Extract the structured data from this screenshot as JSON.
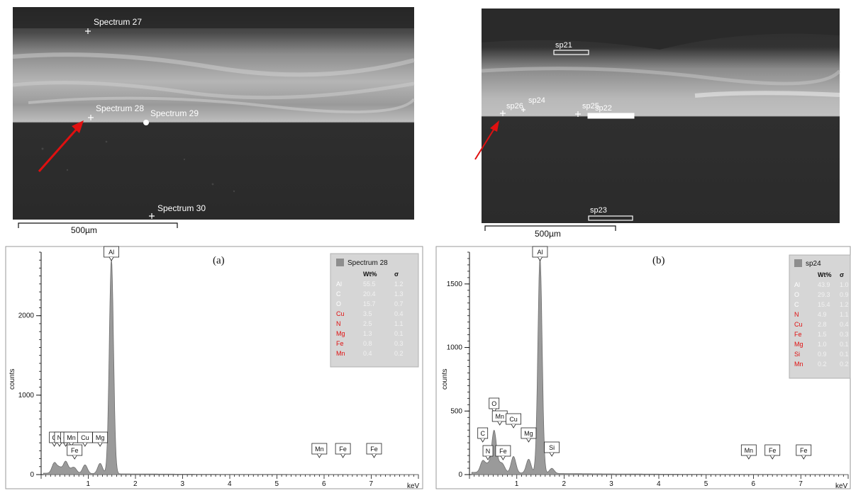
{
  "sem": [
    {
      "labels": [
        "Spectrum 27",
        "Spectrum 28",
        "Spectrum 29",
        "Spectrum 30"
      ],
      "scale_bar": "500µm"
    },
    {
      "labels": [
        "sp21",
        "sp26",
        "sp24",
        "sp25",
        "sp22",
        "sp23"
      ],
      "scale_bar": "500µm"
    }
  ],
  "colors": {
    "spectrum_fill": "#9a9a9a",
    "legend_bg": "#d6d6d6",
    "arrow": "#e01010",
    "element_red": "#e01010",
    "element_white": "#ffffff"
  },
  "chart_data": [
    {
      "type": "area",
      "panel_label": "(a)",
      "xlabel": "keV",
      "ylabel": "counts",
      "xlim": [
        0,
        8
      ],
      "ylim": [
        0,
        2800
      ],
      "x_ticks": [
        1,
        2,
        3,
        4,
        5,
        6,
        7
      ],
      "y_ticks": [
        0,
        1000,
        2000
      ],
      "legend": {
        "title": "Spectrum 28",
        "header": [
          "Wt%",
          "σ"
        ],
        "rows": [
          {
            "el": "Al",
            "wt": "55.5",
            "sigma": "1.2",
            "color": "white"
          },
          {
            "el": "C",
            "wt": "20.4",
            "sigma": "1.3",
            "color": "white"
          },
          {
            "el": "O",
            "wt": "15.7",
            "sigma": "0.7",
            "color": "white"
          },
          {
            "el": "Cu",
            "wt": "3.5",
            "sigma": "0.4",
            "color": "red"
          },
          {
            "el": "N",
            "wt": "2.5",
            "sigma": "1.1",
            "color": "red"
          },
          {
            "el": "Mg",
            "wt": "1.3",
            "sigma": "0.1",
            "color": "red"
          },
          {
            "el": "Fe",
            "wt": "0.8",
            "sigma": "0.3",
            "color": "red"
          },
          {
            "el": "Mn",
            "wt": "0.4",
            "sigma": "0.2",
            "color": "red"
          }
        ]
      },
      "peaks": [
        {
          "label": "C",
          "x": 0.28,
          "counts": 130
        },
        {
          "label": "N",
          "x": 0.39,
          "counts": 70
        },
        {
          "label": "O",
          "x": 0.52,
          "counts": 150
        },
        {
          "label": "Mn",
          "x": 0.64,
          "counts": 40
        },
        {
          "label": "Fe",
          "x": 0.71,
          "counts": 60
        },
        {
          "label": "Cu",
          "x": 0.93,
          "counts": 110
        },
        {
          "label": "Mg",
          "x": 1.25,
          "counts": 130
        },
        {
          "label": "Al",
          "x": 1.49,
          "counts": 2700
        },
        {
          "label": "Mn",
          "x": 5.9,
          "counts": 0
        },
        {
          "label": "Fe",
          "x": 6.4,
          "counts": 0
        },
        {
          "label": "Fe",
          "x": 7.06,
          "counts": 0
        }
      ]
    },
    {
      "type": "area",
      "panel_label": "(b)",
      "xlabel": "keV",
      "ylabel": "counts",
      "xlim": [
        0,
        8
      ],
      "ylim": [
        0,
        1750
      ],
      "x_ticks": [
        1,
        2,
        3,
        4,
        5,
        6,
        7
      ],
      "y_ticks": [
        0,
        500,
        1000,
        1500
      ],
      "legend": {
        "title": "sp24",
        "header": [
          "Wt%",
          "σ"
        ],
        "rows": [
          {
            "el": "Al",
            "wt": "43.9",
            "sigma": "1.0",
            "color": "white"
          },
          {
            "el": "O",
            "wt": "29.3",
            "sigma": "0.9",
            "color": "white"
          },
          {
            "el": "C",
            "wt": "15.4",
            "sigma": "1.2",
            "color": "white"
          },
          {
            "el": "N",
            "wt": "4.9",
            "sigma": "1.1",
            "color": "red"
          },
          {
            "el": "Cu",
            "wt": "2.8",
            "sigma": "0.4",
            "color": "red"
          },
          {
            "el": "Fe",
            "wt": "1.5",
            "sigma": "0.3",
            "color": "red"
          },
          {
            "el": "Mg",
            "wt": "1.0",
            "sigma": "0.1",
            "color": "red"
          },
          {
            "el": "Si",
            "wt": "0.9",
            "sigma": "0.1",
            "color": "red"
          },
          {
            "el": "Mn",
            "wt": "0.2",
            "sigma": "0.2",
            "color": "red"
          }
        ]
      },
      "peaks": [
        {
          "label": "C",
          "x": 0.28,
          "counts": 90
        },
        {
          "label": "N",
          "x": 0.39,
          "counts": 60
        },
        {
          "label": "O",
          "x": 0.52,
          "counts": 330
        },
        {
          "label": "Mn",
          "x": 0.64,
          "counts": 50
        },
        {
          "label": "Fe",
          "x": 0.71,
          "counts": 50
        },
        {
          "label": "Cu",
          "x": 0.93,
          "counts": 130
        },
        {
          "label": "Mg",
          "x": 1.25,
          "counts": 110
        },
        {
          "label": "Al",
          "x": 1.49,
          "counts": 1700
        },
        {
          "label": "Si",
          "x": 1.74,
          "counts": 40
        },
        {
          "label": "Mn",
          "x": 5.9,
          "counts": 0
        },
        {
          "label": "Fe",
          "x": 6.4,
          "counts": 0
        },
        {
          "label": "Fe",
          "x": 7.06,
          "counts": 0
        }
      ]
    }
  ]
}
